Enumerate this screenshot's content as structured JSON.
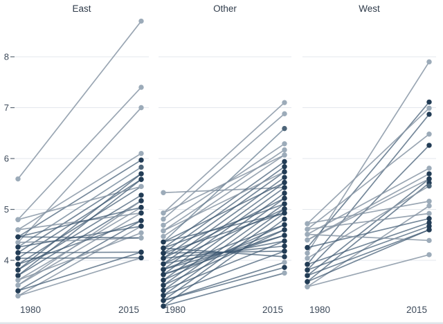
{
  "chart_data": {
    "type": "line",
    "subtype": "faceted-slopegraph",
    "title": "",
    "x_categories": [
      "1980",
      "2015"
    ],
    "yticks": [
      4,
      5,
      6,
      7,
      8
    ],
    "ylim": [
      3.0,
      8.9
    ],
    "grid": "horizontal-only",
    "legend": "none",
    "colors": {
      "background": "#ffffff",
      "grid": "#e3e7ec",
      "axis_text": "#3d4a5a",
      "facet_title": "#2f3b4a",
      "tick_mark": "#5a6673",
      "bottom_edge": "#dfe5ea",
      "points": {
        "dark": "#223c55",
        "mid": "#4d6579",
        "light": "#9cabb9"
      },
      "lines": {
        "dark": "#3a556f",
        "mid": "#526c83",
        "light": "#8897a6"
      },
      "line_opacity": {
        "dark": 0.7,
        "mid": 0.65,
        "light": 0.85
      }
    },
    "facets": [
      {
        "title": "East",
        "lines": [
          [
            5.6,
            8.7,
            "light"
          ],
          [
            4.8,
            7.4,
            "light"
          ],
          [
            4.35,
            7.0,
            "light"
          ],
          [
            4.6,
            6.1,
            "light"
          ],
          [
            4.46,
            5.97,
            "dark"
          ],
          [
            4.26,
            5.83,
            "mid"
          ],
          [
            4.15,
            5.7,
            "dark"
          ],
          [
            4.04,
            5.59,
            "dark"
          ],
          [
            3.92,
            5.45,
            "dark",
            "light"
          ],
          [
            3.81,
            5.28,
            "dark"
          ],
          [
            3.7,
            5.17,
            "dark"
          ],
          [
            3.61,
            5.04,
            "light",
            "dark"
          ],
          [
            3.51,
            4.93,
            "light",
            "dark"
          ],
          [
            3.4,
            4.78,
            "dark"
          ],
          [
            3.3,
            4.67,
            "light",
            "dark"
          ],
          [
            4.8,
            5.45,
            "light"
          ],
          [
            4.6,
            4.93,
            "light",
            "dark"
          ],
          [
            4.46,
            5.04,
            "dark"
          ],
          [
            4.35,
            4.44,
            "light"
          ],
          [
            4.26,
            4.67,
            "dark"
          ],
          [
            4.15,
            4.16,
            "dark"
          ],
          [
            4.04,
            4.05,
            "dark"
          ],
          [
            3.92,
            4.78,
            "dark"
          ],
          [
            3.81,
            5.7,
            "dark"
          ],
          [
            3.7,
            5.59,
            "dark"
          ],
          [
            3.61,
            4.54,
            "light"
          ],
          [
            3.51,
            5.17,
            "light",
            "dark"
          ],
          [
            3.4,
            4.16,
            "dark"
          ],
          [
            3.3,
            4.05,
            "light",
            "dark"
          ],
          [
            4.46,
            4.44,
            "dark",
            "light"
          ]
        ]
      },
      {
        "title": "Other",
        "lines": [
          [
            5.33,
            5.43,
            "light",
            "dark"
          ],
          [
            4.93,
            7.1,
            "light"
          ],
          [
            4.81,
            6.88,
            "light"
          ],
          [
            4.69,
            6.29,
            "light"
          ],
          [
            4.58,
            6.17,
            "light"
          ],
          [
            4.47,
            6.07,
            "light"
          ],
          [
            4.36,
            6.59,
            "mid"
          ],
          [
            4.24,
            5.94,
            "dark"
          ],
          [
            4.14,
            5.84,
            "dark"
          ],
          [
            4.04,
            5.74,
            "dark"
          ],
          [
            3.93,
            5.63,
            "dark"
          ],
          [
            3.82,
            5.53,
            "dark"
          ],
          [
            3.72,
            5.43,
            "dark"
          ],
          [
            3.61,
            5.32,
            "dark"
          ],
          [
            3.51,
            5.22,
            "dark"
          ],
          [
            3.41,
            5.11,
            "dark"
          ],
          [
            3.31,
            5.01,
            "dark"
          ],
          [
            3.21,
            4.93,
            "dark"
          ],
          [
            3.1,
            4.81,
            "dark"
          ],
          [
            4.36,
            4.93,
            "dark"
          ],
          [
            4.24,
            4.07,
            "dark"
          ],
          [
            4.14,
            4.18,
            "dark"
          ],
          [
            4.04,
            4.28,
            "dark"
          ],
          [
            3.93,
            4.38,
            "dark"
          ],
          [
            3.82,
            4.49,
            "dark"
          ],
          [
            3.72,
            4.6,
            "dark"
          ],
          [
            3.61,
            4.7,
            "dark"
          ],
          [
            3.51,
            4.6,
            "dark"
          ],
          [
            3.41,
            4.38,
            "dark"
          ],
          [
            3.31,
            4.18,
            "dark"
          ],
          [
            3.21,
            3.86,
            "dark"
          ],
          [
            3.1,
            3.75,
            "dark",
            "light"
          ],
          [
            3.21,
            3.96,
            "dark",
            "light"
          ],
          [
            4.24,
            5.11,
            "dark"
          ],
          [
            4.36,
            5.53,
            "dark"
          ],
          [
            4.04,
            5.22,
            "dark"
          ],
          [
            3.93,
            5.01,
            "dark"
          ],
          [
            4.14,
            4.93,
            "dark"
          ],
          [
            3.82,
            4.7,
            "dark"
          ],
          [
            3.72,
            4.49,
            "dark"
          ],
          [
            4.93,
            6.07,
            "light"
          ],
          [
            4.58,
            5.74,
            "light",
            "dark"
          ]
        ]
      },
      {
        "title": "West",
        "lines": [
          [
            4.14,
            7.9,
            "light"
          ],
          [
            4.25,
            7.11,
            "dark"
          ],
          [
            4.72,
            6.99,
            "light"
          ],
          [
            3.92,
            6.87,
            "dark"
          ],
          [
            4.61,
            6.48,
            "light"
          ],
          [
            3.81,
            6.26,
            "dark"
          ],
          [
            4.51,
            5.81,
            "light"
          ],
          [
            4.4,
            5.7,
            "light",
            "dark"
          ],
          [
            3.7,
            5.6,
            "dark"
          ],
          [
            3.58,
            5.52,
            "dark"
          ],
          [
            4.04,
            5.46,
            "light",
            "mid"
          ],
          [
            4.72,
            5.16,
            "light"
          ],
          [
            3.48,
            5.07,
            "light"
          ],
          [
            4.61,
            4.92,
            "light"
          ],
          [
            4.25,
            4.82,
            "dark"
          ],
          [
            3.92,
            4.74,
            "dark"
          ],
          [
            3.81,
            4.67,
            "dark"
          ],
          [
            3.7,
            4.6,
            "dark"
          ],
          [
            4.51,
            4.39,
            "light"
          ],
          [
            3.48,
            4.11,
            "light"
          ],
          [
            4.4,
            5.6,
            "light",
            "dark"
          ],
          [
            3.58,
            4.6,
            "dark"
          ]
        ]
      }
    ]
  }
}
